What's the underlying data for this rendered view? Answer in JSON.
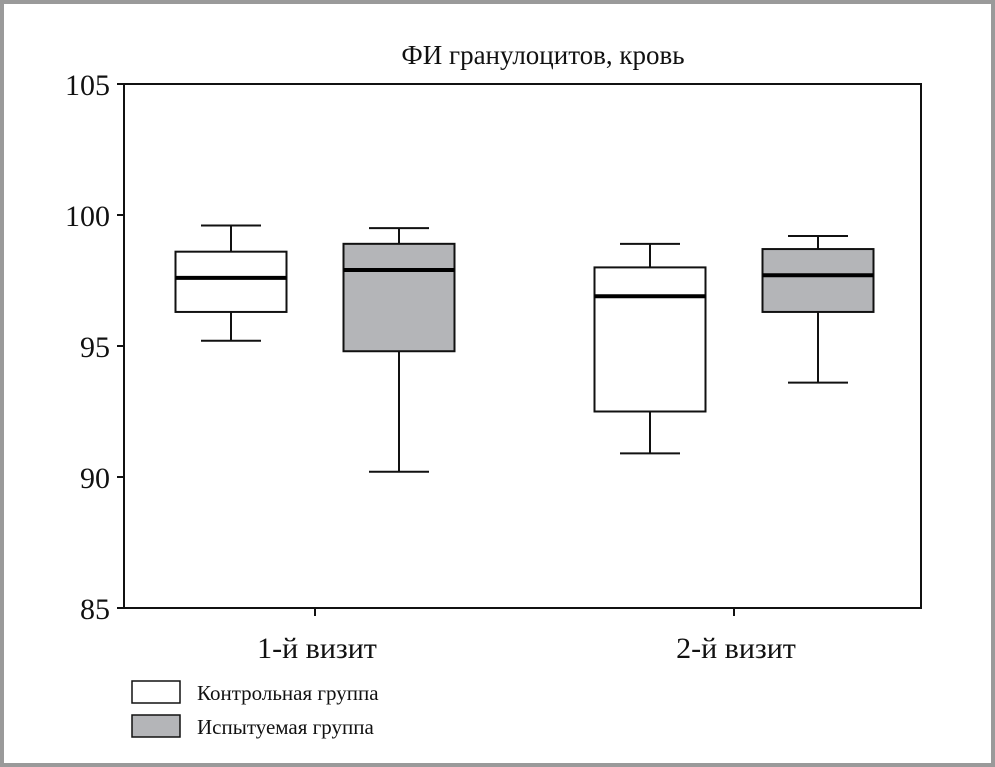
{
  "chart_data": {
    "type": "boxplot",
    "title": "ФИ гранулоцитов, кровь",
    "xlabel": "",
    "ylabel": "",
    "ylim": [
      85,
      105
    ],
    "yticks": [
      85,
      90,
      95,
      100,
      105
    ],
    "categories": [
      "1-й визит",
      "2-й визит"
    ],
    "grid": false,
    "legend_position": "bottom-left",
    "series": [
      {
        "name": "Контрольная группа",
        "color": "#ffffff",
        "boxes": [
          {
            "whisker_low": 95.2,
            "q1": 96.3,
            "median": 97.6,
            "q3": 98.6,
            "whisker_high": 99.6
          },
          {
            "whisker_low": 90.9,
            "q1": 92.5,
            "median": 96.9,
            "q3": 98.0,
            "whisker_high": 98.9
          }
        ]
      },
      {
        "name": "Испытуемая группа",
        "color": "#b4b5b8",
        "boxes": [
          {
            "whisker_low": 90.2,
            "q1": 94.8,
            "median": 97.9,
            "q3": 98.9,
            "whisker_high": 99.5
          },
          {
            "whisker_low": 93.6,
            "q1": 96.3,
            "median": 97.7,
            "q3": 98.7,
            "whisker_high": 99.2
          }
        ]
      }
    ]
  }
}
